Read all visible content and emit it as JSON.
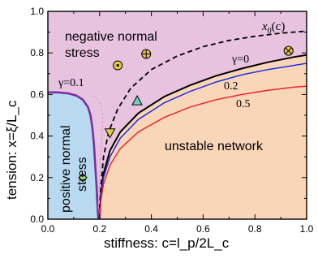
{
  "chart_data": {
    "type": "line",
    "xlabel": "stiffness: c=l_p/2L_c",
    "ylabel": "tension: x=ξ/L_c",
    "xlim": [
      0,
      1
    ],
    "ylim": [
      0,
      1
    ],
    "xticks": [
      "0.0",
      "0.2",
      "0.4",
      "0.6",
      "0.8",
      "1.0"
    ],
    "yticks": [
      "0.0",
      "0.2",
      "0.4",
      "0.6",
      "0.8",
      "1.0"
    ],
    "regions": [
      {
        "name": "negative normal stress",
        "lines": [
          "negative normal",
          "stress"
        ],
        "color": "#e8c3df"
      },
      {
        "name": "positive normal stress",
        "lines": [
          "positive normal",
          "stress"
        ],
        "color": "#b9d9f0"
      },
      {
        "name": "unstable network",
        "lines": [
          "unstable network"
        ],
        "color": "#fad6b9"
      }
    ],
    "series": [
      {
        "name": "x0(c)",
        "label_main": "x",
        "label_sub": "0",
        "label_arg": "(c)",
        "style": "dashed",
        "color": "#000000",
        "points": [
          [
            0.2,
            0.05
          ],
          [
            0.205,
            0.16
          ],
          [
            0.215,
            0.3
          ],
          [
            0.235,
            0.42
          ],
          [
            0.27,
            0.53
          ],
          [
            0.32,
            0.63
          ],
          [
            0.4,
            0.72
          ],
          [
            0.5,
            0.785
          ],
          [
            0.6,
            0.83
          ],
          [
            0.7,
            0.86
          ],
          [
            0.8,
            0.88
          ],
          [
            0.9,
            0.895
          ],
          [
            1.0,
            0.905
          ]
        ]
      },
      {
        "name": "γ=0",
        "label": "γ=0",
        "color": "#000000",
        "points": [
          [
            0.2,
            0.0
          ],
          [
            0.205,
            0.12
          ],
          [
            0.215,
            0.22
          ],
          [
            0.24,
            0.33
          ],
          [
            0.28,
            0.42
          ],
          [
            0.35,
            0.51
          ],
          [
            0.45,
            0.59
          ],
          [
            0.55,
            0.645
          ],
          [
            0.65,
            0.69
          ],
          [
            0.75,
            0.725
          ],
          [
            0.85,
            0.755
          ],
          [
            0.95,
            0.78
          ],
          [
            1.0,
            0.79
          ]
        ]
      },
      {
        "name": "γ=0.2",
        "label": "0.2",
        "color": "#1f2fe0",
        "points": [
          [
            0.2,
            0.0
          ],
          [
            0.205,
            0.11
          ],
          [
            0.215,
            0.2
          ],
          [
            0.24,
            0.3
          ],
          [
            0.28,
            0.39
          ],
          [
            0.35,
            0.48
          ],
          [
            0.45,
            0.56
          ],
          [
            0.55,
            0.615
          ],
          [
            0.65,
            0.66
          ],
          [
            0.75,
            0.695
          ],
          [
            0.85,
            0.72
          ],
          [
            0.95,
            0.74
          ],
          [
            1.0,
            0.75
          ]
        ]
      },
      {
        "name": "γ=0.5",
        "label": "0.5",
        "color": "#e8282a",
        "points": [
          [
            0.2,
            0.0
          ],
          [
            0.205,
            0.09
          ],
          [
            0.215,
            0.17
          ],
          [
            0.24,
            0.26
          ],
          [
            0.28,
            0.34
          ],
          [
            0.35,
            0.42
          ],
          [
            0.45,
            0.49
          ],
          [
            0.55,
            0.54
          ],
          [
            0.65,
            0.575
          ],
          [
            0.75,
            0.6
          ],
          [
            0.85,
            0.62
          ],
          [
            0.95,
            0.635
          ],
          [
            1.0,
            0.64
          ]
        ]
      },
      {
        "name": "γ=0.1",
        "label": "γ=0.1",
        "color": "#7a2f9a",
        "points": [
          [
            0.0,
            0.61
          ],
          [
            0.04,
            0.61
          ],
          [
            0.08,
            0.605
          ],
          [
            0.11,
            0.595
          ],
          [
            0.135,
            0.575
          ],
          [
            0.155,
            0.54
          ],
          [
            0.165,
            0.5
          ],
          [
            0.172,
            0.44
          ],
          [
            0.178,
            0.36
          ],
          [
            0.183,
            0.26
          ],
          [
            0.188,
            0.16
          ],
          [
            0.192,
            0.06
          ],
          [
            0.195,
            0.0
          ]
        ]
      },
      {
        "name": "γ=0.1 faint",
        "style": "faint",
        "color": "#d89ec8",
        "points": [
          [
            0.195,
            0.05
          ],
          [
            0.2,
            0.2
          ],
          [
            0.205,
            0.32
          ],
          [
            0.21,
            0.42
          ],
          [
            0.212,
            0.5
          ],
          [
            0.205,
            0.55
          ],
          [
            0.19,
            0.58
          ],
          [
            0.17,
            0.6
          ]
        ]
      }
    ],
    "markers": [
      {
        "shape": "dot-circle",
        "x": 0.27,
        "y": 0.74,
        "color": "#e6c74a"
      },
      {
        "shape": "plus-circle",
        "x": 0.38,
        "y": 0.795,
        "color": "#e6c74a"
      },
      {
        "shape": "cross-circle",
        "x": 0.93,
        "y": 0.81,
        "color": "#e6c74a"
      },
      {
        "shape": "triangle",
        "x": 0.345,
        "y": 0.57,
        "color": "#6fd0c0"
      },
      {
        "shape": "triangle-down",
        "x": 0.24,
        "y": 0.415,
        "color": "#e6c74a"
      },
      {
        "shape": "diamond",
        "x": 0.135,
        "y": 0.2,
        "color": "#9fd66a"
      }
    ]
  }
}
